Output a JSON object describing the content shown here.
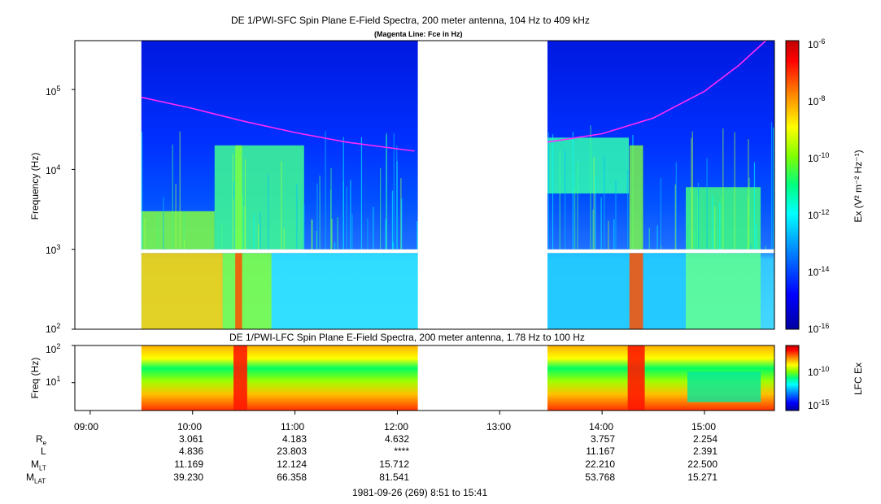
{
  "chart_data": [
    {
      "type": "heatmap",
      "title": "DE 1/PWI-SFC  Spin Plane E-Field Spectra, 200 meter antenna, 104 Hz to 409 kHz",
      "subtitle": "(Magenta Line: Fce in Hz)",
      "ylabel": "Frequency (Hz)",
      "yscale": "log",
      "ylim": [
        100,
        409000
      ],
      "y_ticks": [
        {
          "base": "10",
          "exp": "2"
        },
        {
          "base": "10",
          "exp": "3"
        },
        {
          "base": "10",
          "exp": "4"
        },
        {
          "base": "10",
          "exp": "5"
        }
      ],
      "colorbar": {
        "label": "Ex (V² m⁻² Hz⁻¹)",
        "scale": "log",
        "range": [
          1e-16,
          1e-06
        ],
        "ticks": [
          {
            "base": "10",
            "exp": "-6"
          },
          {
            "base": "10",
            "exp": "-8"
          },
          {
            "base": "10",
            "exp": "-10"
          },
          {
            "base": "10",
            "exp": "-12"
          },
          {
            "base": "10",
            "exp": "-14"
          },
          {
            "base": "10",
            "exp": "-16"
          }
        ]
      },
      "data_intervals": [
        [
          "09:30",
          "12:12"
        ],
        [
          "13:28",
          "15:41"
        ]
      ],
      "fce_line": {
        "color": "#ff2aff",
        "points": [
          [
            "09:30",
            80000
          ],
          [
            "10:00",
            58000
          ],
          [
            "10:30",
            40000
          ],
          [
            "11:00",
            29000
          ],
          [
            "11:30",
            22000
          ],
          [
            "12:10",
            17000
          ],
          [
            "13:28",
            22000
          ],
          [
            "14:00",
            28000
          ],
          [
            "14:30",
            44000
          ],
          [
            "15:00",
            95000
          ],
          [
            "15:20",
            200000
          ],
          [
            "15:36",
            409000
          ]
        ]
      }
    },
    {
      "type": "heatmap",
      "title": "DE 1/PWI-LFC  Spin Plane E-Field Spectra, 200 meter antenna, 1.78 Hz to 100 Hz",
      "ylabel": "Freq (Hz)",
      "yscale": "log",
      "ylim": [
        1.78,
        100
      ],
      "y_ticks": [
        {
          "base": "10",
          "exp": "1"
        },
        {
          "base": "10",
          "exp": "2"
        }
      ],
      "colorbar": {
        "label": "LFC Ex",
        "scale": "log",
        "ticks": [
          {
            "base": "10",
            "exp": "-10"
          },
          {
            "base": "10",
            "exp": "-15"
          }
        ]
      },
      "data_intervals": [
        [
          "09:30",
          "12:12"
        ],
        [
          "13:28",
          "15:41"
        ]
      ]
    }
  ],
  "xaxis": {
    "ticks": [
      "09:00",
      "10:00",
      "11:00",
      "12:00",
      "13:00",
      "14:00",
      "15:00"
    ],
    "range": [
      "08:51",
      "15:41"
    ],
    "caption": "1981-09-26 (269) 8:51 to 15:41"
  },
  "orbit_rows": [
    {
      "name": "R",
      "sub": "e",
      "values": [
        "3.061",
        "4.183",
        "4.632",
        "",
        "3.757",
        "2.254"
      ]
    },
    {
      "name": "L",
      "sub": "",
      "values": [
        "4.836",
        "23.803",
        "****",
        "",
        "11.167",
        "2.391"
      ]
    },
    {
      "name": "M",
      "sub": "LT",
      "values": [
        "11.169",
        "12.124",
        "15.712",
        "",
        "22.210",
        "22.500"
      ]
    },
    {
      "name": "M",
      "sub": "LAT",
      "values": [
        "39.230",
        "66.358",
        "81.541",
        "",
        "53.768",
        "15.271"
      ]
    }
  ]
}
